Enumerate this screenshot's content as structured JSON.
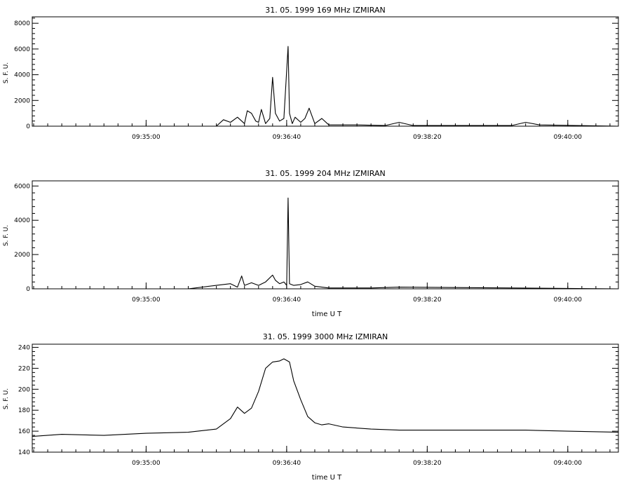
{
  "chart_data": [
    {
      "type": "line",
      "title": "31. 05. 1999    169 MHz    IZMIRAN",
      "ylabel": "S. F. U.",
      "xlabel": "",
      "xlim": [
        "09:33:39",
        "09:40:36"
      ],
      "ylim": [
        0,
        8500
      ],
      "yticks": [
        0,
        2000,
        4000,
        6000,
        8000
      ],
      "xticks": [
        "09:35:00",
        "09:36:40",
        "09:38:20",
        "09:40:00"
      ],
      "grid": false,
      "x": [
        "09:33:39",
        "09:35:00",
        "09:35:50",
        "09:35:55",
        "09:36:00",
        "09:36:05",
        "09:36:10",
        "09:36:12",
        "09:36:15",
        "09:36:18",
        "09:36:20",
        "09:36:22",
        "09:36:25",
        "09:36:28",
        "09:36:30",
        "09:36:32",
        "09:36:35",
        "09:36:38",
        "09:36:41",
        "09:36:42",
        "09:36:44",
        "09:36:46",
        "09:36:50",
        "09:36:53",
        "09:36:56",
        "09:37:00",
        "09:37:05",
        "09:37:10",
        "09:37:30",
        "09:37:50",
        "09:38:00",
        "09:38:10",
        "09:39:20",
        "09:39:30",
        "09:39:40",
        "09:40:36"
      ],
      "y": [
        0,
        0,
        0,
        500,
        300,
        700,
        200,
        1200,
        1000,
        400,
        300,
        1300,
        200,
        600,
        3800,
        1000,
        400,
        600,
        6200,
        1000,
        200,
        700,
        300,
        600,
        1400,
        200,
        600,
        100,
        100,
        50,
        300,
        50,
        50,
        300,
        100,
        0
      ]
    },
    {
      "type": "line",
      "title": "31. 05. 1999    204 MHz    IZMIRAN",
      "ylabel": "S. F. U.",
      "xlabel": "time  U T",
      "xlim": [
        "09:33:39",
        "09:40:36"
      ],
      "ylim": [
        0,
        6300
      ],
      "yticks": [
        0,
        2000,
        4000,
        6000
      ],
      "xticks": [
        "09:35:00",
        "09:36:40",
        "09:38:20",
        "09:40:00"
      ],
      "grid": false,
      "x": [
        "09:33:39",
        "09:35:30",
        "09:35:50",
        "09:36:00",
        "09:36:05",
        "09:36:08",
        "09:36:10",
        "09:36:15",
        "09:36:20",
        "09:36:25",
        "09:36:30",
        "09:36:32",
        "09:36:35",
        "09:36:38",
        "09:36:40",
        "09:36:41",
        "09:36:42",
        "09:36:45",
        "09:36:50",
        "09:36:55",
        "09:37:00",
        "09:37:10",
        "09:37:40",
        "09:38:00",
        "09:40:36"
      ],
      "y": [
        0,
        0,
        200,
        300,
        100,
        750,
        200,
        350,
        200,
        400,
        800,
        500,
        300,
        400,
        200,
        5300,
        300,
        200,
        250,
        400,
        150,
        50,
        50,
        100,
        0
      ]
    },
    {
      "type": "line",
      "title": "31. 05. 1999    3000 MHz    IZMIRAN",
      "ylabel": "S. F. U.",
      "xlabel": "time  U T",
      "xlim": [
        "09:33:39",
        "09:40:36"
      ],
      "ylim": [
        140,
        243
      ],
      "yticks": [
        140,
        160,
        180,
        200,
        220,
        240
      ],
      "xticks": [
        "09:35:00",
        "09:36:40",
        "09:38:20",
        "09:40:00"
      ],
      "grid": false,
      "x": [
        "09:33:39",
        "09:34:00",
        "09:34:30",
        "09:35:00",
        "09:35:30",
        "09:35:50",
        "09:36:00",
        "09:36:05",
        "09:36:10",
        "09:36:15",
        "09:36:20",
        "09:36:25",
        "09:36:30",
        "09:36:35",
        "09:36:38",
        "09:36:42",
        "09:36:45",
        "09:36:50",
        "09:36:55",
        "09:37:00",
        "09:37:05",
        "09:37:10",
        "09:37:20",
        "09:37:40",
        "09:38:00",
        "09:38:30",
        "09:39:00",
        "09:39:30",
        "09:40:00",
        "09:40:36"
      ],
      "y": [
        155,
        157,
        156,
        158,
        159,
        162,
        172,
        183,
        177,
        182,
        198,
        220,
        226,
        227,
        229,
        226,
        208,
        190,
        174,
        168,
        166,
        167,
        164,
        162,
        161,
        161,
        161,
        161,
        160,
        159
      ]
    }
  ]
}
